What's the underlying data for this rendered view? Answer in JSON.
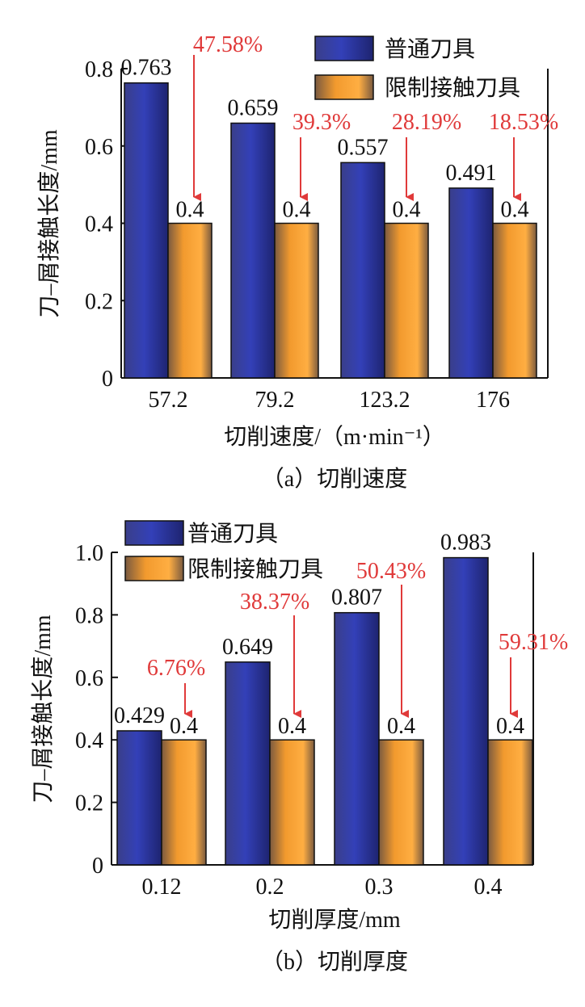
{
  "colors": {
    "series_standard": "#2b2f9a",
    "series_standard_light": "#5058c8",
    "series_limited": "#f29a2e",
    "series_limited_light": "#ffb65a",
    "bar_edge_dark": "#4a4a4a",
    "annotation": "#e03a3a"
  },
  "chart_data": [
    {
      "type": "bar",
      "caption": "（a）切削速度",
      "xlabel": "切削速度/（m·min⁻¹）",
      "ylabel": "刀–屑接触长度/mm",
      "categories": [
        "57.2",
        "79.2",
        "123.2",
        "176"
      ],
      "ylim": [
        0,
        0.8
      ],
      "yticks": [
        "0",
        "0.2",
        "0.4",
        "0.6",
        "0.8"
      ],
      "legend_position": "top-right",
      "series": [
        {
          "name": "普通刀具",
          "values": [
            0.763,
            0.659,
            0.557,
            0.491
          ],
          "labels": [
            "0.763",
            "0.659",
            "0.557",
            "0.491"
          ]
        },
        {
          "name": "限制接触刀具",
          "values": [
            0.4,
            0.4,
            0.4,
            0.4
          ],
          "labels": [
            "0.4",
            "0.4",
            "0.4",
            "0.4"
          ]
        }
      ],
      "annotations": [
        "47.58%",
        "39.3%",
        "28.19%",
        "18.53%"
      ]
    },
    {
      "type": "bar",
      "caption": "（b）切削厚度",
      "xlabel": "切削厚度/mm",
      "ylabel": "刀–屑接触长度/mm",
      "categories": [
        "0.12",
        "0.2",
        "0.3",
        "0.4"
      ],
      "ylim": [
        0,
        1.0
      ],
      "yticks": [
        "0",
        "0.2",
        "0.4",
        "0.6",
        "0.8",
        "1.0"
      ],
      "legend_position": "top-left",
      "series": [
        {
          "name": "普通刀具",
          "values": [
            0.429,
            0.649,
            0.807,
            0.983
          ],
          "labels": [
            "0.429",
            "0.649",
            "0.807",
            "0.983"
          ]
        },
        {
          "name": "限制接触刀具",
          "values": [
            0.4,
            0.4,
            0.4,
            0.4
          ],
          "labels": [
            "0.4",
            "0.4",
            "0.4",
            "0.4"
          ]
        }
      ],
      "annotations": [
        "6.76%",
        "38.37%",
        "50.43%",
        "59.31%"
      ]
    }
  ]
}
